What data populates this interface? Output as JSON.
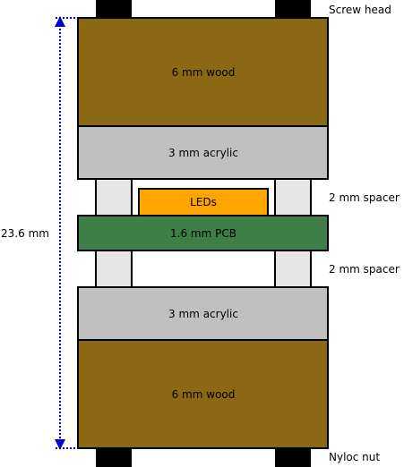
{
  "layers": {
    "top_wood": "6 mm wood",
    "top_acrylic": "3 mm acrylic",
    "leds": "LEDs",
    "pcb": "1.6 mm PCB",
    "bottom_acrylic": "3 mm acrylic",
    "bottom_wood": "6 mm wood"
  },
  "labels": {
    "screw_head": "Screw head",
    "spacer_top": "2 mm spacer",
    "spacer_bottom": "2 mm spacer",
    "nyloc_nut": "Nyloc nut",
    "total_height": "23.6 mm"
  },
  "colors": {
    "wood": "#8b6914",
    "acrylic": "#c0c0c0",
    "spacer": "#e6e6e6",
    "pcb": "#3e7f47",
    "leds": "#ffa500",
    "hardware": "#000000",
    "dimension_arrow": "#0000cc"
  }
}
